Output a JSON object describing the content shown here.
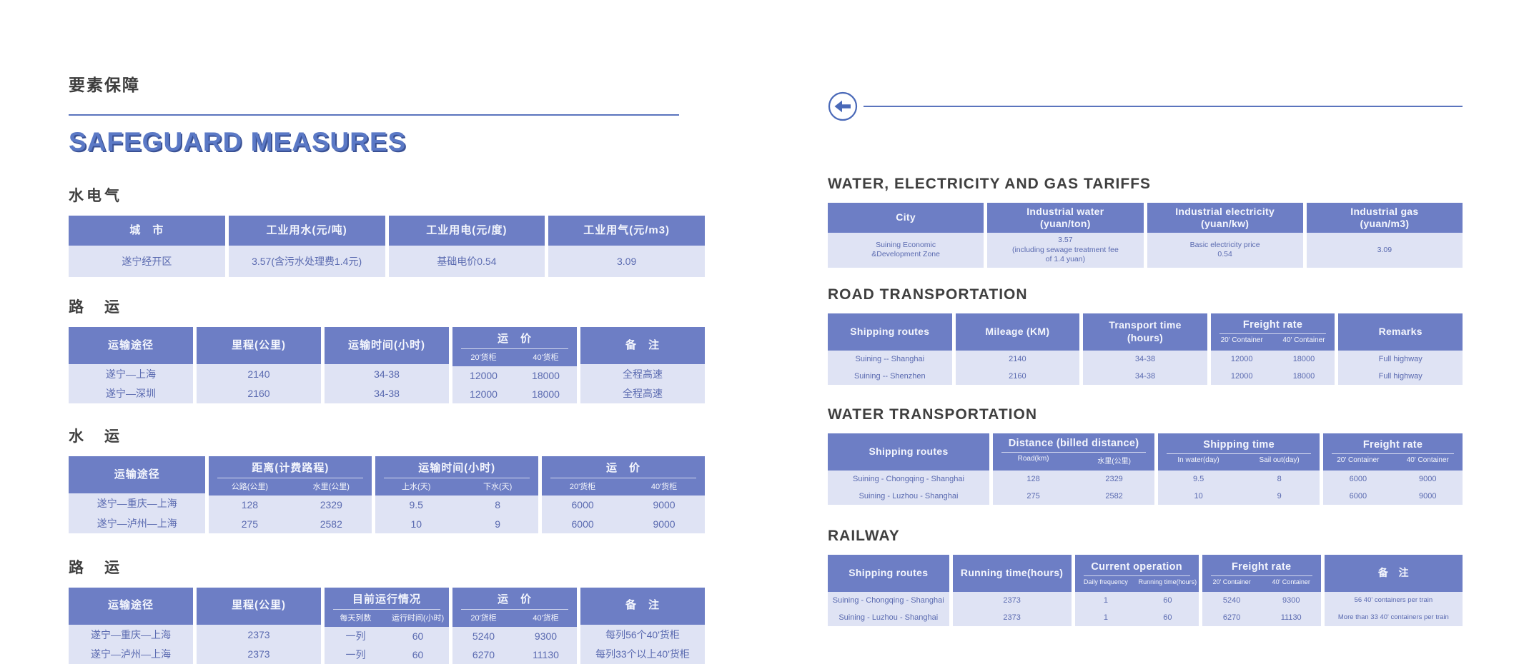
{
  "colors": {
    "header_blue": "#6d7ec5",
    "row_lavender": "#dfe3f4",
    "body_text_blue": "#5a6ab0",
    "accent_line_blue": "#5a74bd",
    "title_blue": "#5b79c6",
    "title_shadow_navy": "#3a5194",
    "heading_gray": "#3f3f3f"
  },
  "left": {
    "kicker": "要素保障",
    "title": "SAFEGUARD MEASURES",
    "sections": [
      {
        "id": "utilities-cn",
        "heading": "水电气",
        "table": {
          "columns": [
            {
              "label": "城　市"
            },
            {
              "label": "工业用水(元/吨)"
            },
            {
              "label": "工业用电(元/度)"
            },
            {
              "label": "工业用气(元/m3)"
            }
          ],
          "rows": [
            [
              "遂宁经开区",
              "3.57(含污水处理费1.4元)",
              "基础电价0.54",
              "3.09"
            ]
          ]
        }
      },
      {
        "id": "road-cn",
        "heading": "路　运",
        "table": {
          "columns": [
            {
              "label": "运输途径"
            },
            {
              "label": "里程(公里)"
            },
            {
              "label": "运输时间(小时)"
            },
            {
              "label": "运　价",
              "subs": [
                "20'货柜",
                "40'货柜"
              ]
            },
            {
              "label": "备　注"
            }
          ],
          "rows": [
            [
              "遂宁—上海",
              "2140",
              "34-38",
              "12000",
              "18000",
              "全程高速"
            ],
            [
              "遂宁—深圳",
              "2160",
              "34-38",
              "12000",
              "18000",
              "全程高速"
            ]
          ]
        }
      },
      {
        "id": "water-cn",
        "heading": "水　运",
        "table": {
          "columns": [
            {
              "label": "运输途径"
            },
            {
              "label": "距离(计费路程)",
              "subs": [
                "公路(公里)",
                "水里(公里)"
              ]
            },
            {
              "label": "运输时间(小时)",
              "subs": [
                "上水(天)",
                "下水(天)"
              ]
            },
            {
              "label": "运　价",
              "subs": [
                "20'货柜",
                "40'货柜"
              ]
            }
          ],
          "rows": [
            [
              "遂宁—重庆—上海",
              "128",
              "2329",
              "9.5",
              "8",
              "6000",
              "9000"
            ],
            [
              "遂宁—泸州—上海",
              "275",
              "2582",
              "10",
              "9",
              "6000",
              "9000"
            ]
          ]
        }
      },
      {
        "id": "rail-cn",
        "heading": "路　运",
        "table": {
          "columns": [
            {
              "label": "运输途径"
            },
            {
              "label": "里程(公里)"
            },
            {
              "label": "目前运行情况",
              "subs": [
                "每天列数",
                "运行时间(小时)"
              ]
            },
            {
              "label": "运　价",
              "subs": [
                "20'货柜",
                "40'货柜"
              ]
            },
            {
              "label": "备　注"
            }
          ],
          "rows": [
            [
              "遂宁—重庆—上海",
              "2373",
              "一列",
              "60",
              "5240",
              "9300",
              "每列56个40'货柜"
            ],
            [
              "遂宁—泸州—上海",
              "2373",
              "一列",
              "60",
              "6270",
              "11130",
              "每列33个以上40'货柜"
            ]
          ]
        }
      }
    ]
  },
  "right": {
    "back_icon": "left-arrow-icon",
    "sections": [
      {
        "id": "utilities-en",
        "heading": "WATER, ELECTRICITY AND GAS TARIFFS",
        "table": {
          "columns": [
            {
              "label": "City"
            },
            {
              "label": "Industrial water\n(yuan/ton)"
            },
            {
              "label": "Industrial electricity\n(yuan/kw)"
            },
            {
              "label": "Industrial gas\n(yuan/m3)"
            }
          ],
          "rows": [
            [
              "Suining Economic\n&Development Zone",
              "3.57\n(including sewage treatment fee\nof 1.4 yuan)",
              "Basic electricity price\n0.54",
              "3.09"
            ]
          ]
        }
      },
      {
        "id": "road-en",
        "heading": "ROAD TRANSPORTATION",
        "table": {
          "columns": [
            {
              "label": "Shipping routes"
            },
            {
              "label": "Mileage (KM)"
            },
            {
              "label": "Transport time\n(hours)"
            },
            {
              "label": "Freight rate",
              "subs": [
                "20' Container",
                "40' Container"
              ]
            },
            {
              "label": "Remarks"
            }
          ],
          "rows": [
            [
              "Suining -- Shanghai",
              "2140",
              "34-38",
              "12000",
              "18000",
              "Full highway"
            ],
            [
              "Suining -- Shenzhen",
              "2160",
              "34-38",
              "12000",
              "18000",
              "Full highway"
            ]
          ]
        }
      },
      {
        "id": "water-en",
        "heading": "WATER TRANSPORTATION",
        "table": {
          "columns": [
            {
              "label": "Shipping routes"
            },
            {
              "label": "Distance (billed distance)",
              "subs": [
                "Road(km)",
                "水里(公里)"
              ]
            },
            {
              "label": "Shipping time",
              "subs": [
                "In water(day)",
                "Sail out(day)"
              ]
            },
            {
              "label": "Freight rate",
              "subs": [
                "20' Container",
                "40' Container"
              ]
            }
          ],
          "rows": [
            [
              "Suining - Chongqing - Shanghai",
              "128",
              "2329",
              "9.5",
              "8",
              "6000",
              "9000"
            ],
            [
              "Suining - Luzhou - Shanghai",
              "275",
              "2582",
              "10",
              "9",
              "6000",
              "9000"
            ]
          ]
        }
      },
      {
        "id": "rail-en",
        "heading": "RAILWAY",
        "table": {
          "columns": [
            {
              "label": "Shipping routes"
            },
            {
              "label": "Running time(hours)"
            },
            {
              "label": "Current operation",
              "subs": [
                "Daily frequency",
                "Running time(hours)"
              ]
            },
            {
              "label": "Freight rate",
              "subs": [
                "20' Container",
                "40' Container"
              ]
            },
            {
              "label": "备　注"
            }
          ],
          "rows": [
            [
              "Suining - Chongqing - Shanghai",
              "2373",
              "1",
              "60",
              "5240",
              "9300",
              "56 40' containers per train"
            ],
            [
              "Suining - Luzhou - Shanghai",
              "2373",
              "1",
              "60",
              "6270",
              "11130",
              "More than 33 40' containers per train"
            ]
          ]
        }
      }
    ]
  }
}
